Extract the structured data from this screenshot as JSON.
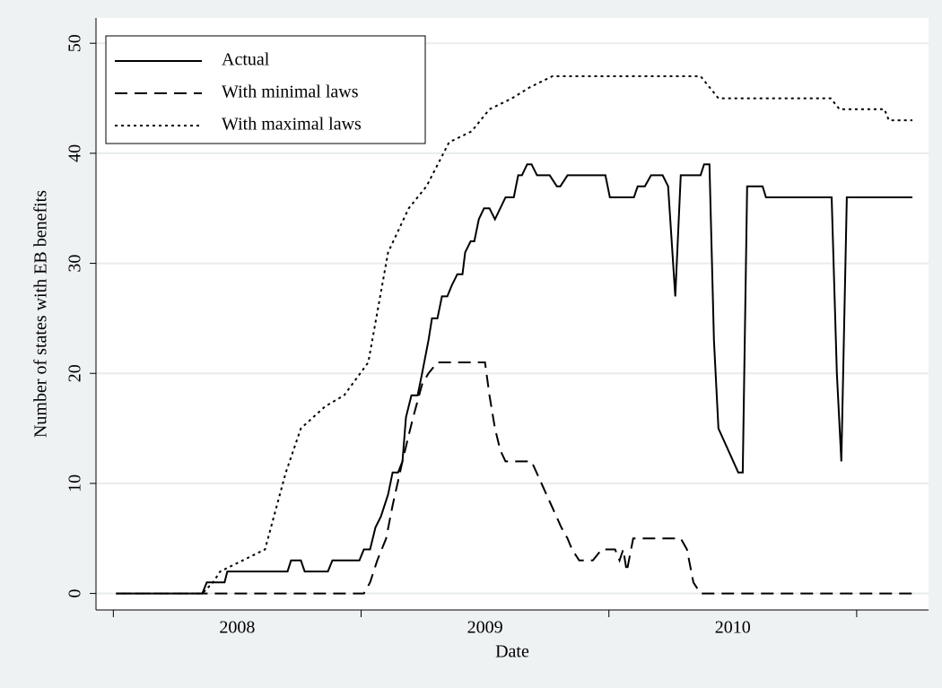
{
  "chart_data": {
    "type": "line",
    "x_label": "Date",
    "y_label": "Number of states with EB benefits",
    "xlim": [
      2007.93,
      2011.29
    ],
    "ylim": [
      -1.5,
      52.3
    ],
    "yticks": [
      0,
      10,
      20,
      30,
      40,
      50
    ],
    "xtick_marks": [
      2008,
      2009,
      2010,
      2011
    ],
    "xticks": [
      {
        "value": 2008.5,
        "label": "2008"
      },
      {
        "value": 2009.5,
        "label": "2009"
      },
      {
        "value": 2010.5,
        "label": "2010"
      }
    ],
    "grid": true,
    "legend": "top-left",
    "series": [
      {
        "name": "Actual",
        "color": "#000000",
        "style": "solid",
        "x": [
          2008.011,
          2008.359,
          2008.377,
          2008.449,
          2008.46,
          2008.703,
          2008.717,
          2008.757,
          2008.772,
          2008.866,
          2008.884,
          2008.993,
          2009.011,
          2009.036,
          2009.058,
          2009.08,
          2009.109,
          2009.127,
          2009.149,
          2009.167,
          2009.181,
          2009.203,
          2009.228,
          2009.246,
          2009.272,
          2009.286,
          2009.308,
          2009.326,
          2009.348,
          2009.366,
          2009.388,
          2009.409,
          2009.42,
          2009.442,
          2009.457,
          2009.475,
          2009.496,
          2009.518,
          2009.54,
          2009.583,
          2009.616,
          2009.634,
          2009.649,
          2009.67,
          2009.688,
          2009.71,
          2009.761,
          2009.79,
          2009.804,
          2009.833,
          2009.986,
          2010.004,
          2010.101,
          2010.116,
          2010.145,
          2010.17,
          2010.217,
          2010.239,
          2010.268,
          2010.29,
          2010.37,
          2010.384,
          2010.406,
          2010.424,
          2010.442,
          2010.522,
          2010.54,
          2010.558,
          2010.62,
          2010.634,
          2010.899,
          2010.92,
          2010.938,
          2010.96,
          2011.225
        ],
        "values": [
          0,
          0,
          1,
          1,
          2,
          2,
          3,
          3,
          2,
          2,
          3,
          3,
          4,
          4,
          6,
          7,
          9,
          11,
          11,
          12,
          16,
          18,
          18,
          20,
          23,
          25,
          25,
          27,
          27,
          28,
          29,
          29,
          31,
          32,
          32,
          34,
          35,
          35,
          34,
          36,
          36,
          38,
          38,
          39,
          39,
          38,
          38,
          37,
          37,
          38,
          38,
          36,
          36,
          37,
          37,
          38,
          38,
          37,
          27,
          38,
          38,
          39,
          39,
          23,
          15,
          11,
          11,
          37,
          37,
          36,
          36,
          20,
          12,
          36,
          36
        ]
      },
      {
        "name": "With minimal laws",
        "color": "#000000",
        "style": "dashed",
        "x": [
          2008.011,
          2009.011,
          2009.036,
          2009.065,
          2009.101,
          2009.127,
          2009.167,
          2009.188,
          2009.21,
          2009.246,
          2009.272,
          2009.308,
          2009.5,
          2009.518,
          2009.54,
          2009.562,
          2009.583,
          2009.688,
          2009.808,
          2009.833,
          2009.851,
          2009.88,
          2009.935,
          2009.971,
          2010.025,
          2010.043,
          2010.058,
          2010.072,
          2010.098,
          2010.29,
          2010.315,
          2010.341,
          2010.37,
          2011.225
        ],
        "values": [
          0,
          0,
          1,
          3,
          5,
          8,
          12,
          14,
          16,
          19,
          20,
          21,
          21,
          18,
          15,
          13,
          12,
          12,
          6,
          5,
          4,
          3,
          3,
          4,
          4,
          3,
          4,
          2,
          5,
          5,
          4,
          1,
          0,
          0
        ]
      },
      {
        "name": "With maximal laws",
        "color": "#000000",
        "style": "dotted",
        "x": [
          2008.011,
          2008.359,
          2008.402,
          2008.431,
          2008.522,
          2008.612,
          2008.696,
          2008.757,
          2008.855,
          2008.931,
          2009.029,
          2009.109,
          2009.192,
          2009.264,
          2009.355,
          2009.446,
          2009.518,
          2009.609,
          2009.681,
          2009.772,
          2010.37,
          2010.442,
          2010.895,
          2010.931,
          2011.112,
          2011.13,
          2011.225
        ],
        "values": [
          0,
          0,
          1,
          2,
          3,
          4,
          11,
          15,
          17,
          18,
          21,
          31,
          35,
          37,
          41,
          42,
          44,
          45,
          46,
          47,
          47,
          45,
          45,
          44,
          44,
          43,
          43
        ]
      }
    ]
  }
}
